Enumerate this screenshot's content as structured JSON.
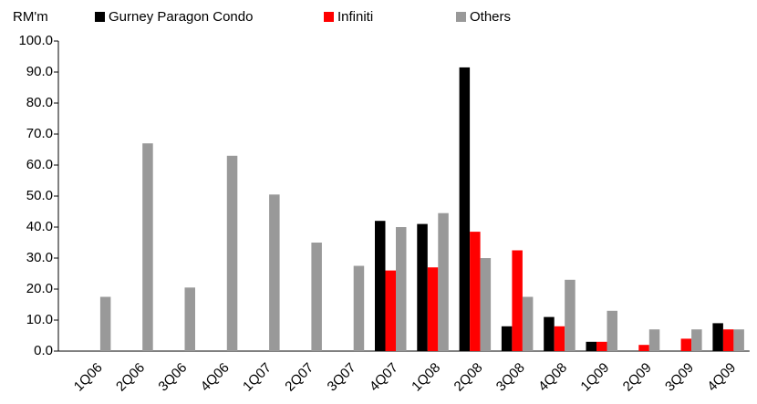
{
  "chart_data": {
    "type": "bar",
    "y_unit": "RM'm",
    "categories": [
      "1Q06",
      "2Q06",
      "3Q06",
      "4Q06",
      "1Q07",
      "2Q07",
      "3Q07",
      "4Q07",
      "1Q08",
      "2Q08",
      "3Q08",
      "4Q08",
      "1Q09",
      "2Q09",
      "3Q09",
      "4Q09"
    ],
    "series": [
      {
        "name": "Gurney Paragon Condo",
        "color": "#000000",
        "values": [
          null,
          null,
          null,
          null,
          null,
          null,
          null,
          42,
          41,
          91.5,
          8,
          11,
          3,
          null,
          null,
          9
        ]
      },
      {
        "name": "Infiniti",
        "color": "#ff0000",
        "values": [
          null,
          null,
          null,
          null,
          null,
          null,
          null,
          26,
          27,
          38.5,
          32.5,
          8,
          3,
          2,
          4,
          7
        ]
      },
      {
        "name": "Others",
        "color": "#999999",
        "values": [
          17.5,
          67,
          20.5,
          63,
          50.5,
          35,
          27.5,
          40,
          44.5,
          30,
          17.5,
          23,
          13,
          7,
          7,
          7
        ]
      }
    ],
    "ylim": [
      0,
      100
    ],
    "yticks": [
      {
        "value": 0,
        "label": "0.0"
      },
      {
        "value": 10,
        "label": "10.0"
      },
      {
        "value": 20,
        "label": "20.0"
      },
      {
        "value": 30,
        "label": "30.0"
      },
      {
        "value": 40,
        "label": "40.0"
      },
      {
        "value": 50,
        "label": "50.0"
      },
      {
        "value": 60,
        "label": "60.0"
      },
      {
        "value": 70,
        "label": "70.0"
      },
      {
        "value": 80,
        "label": "80.0"
      },
      {
        "value": 90,
        "label": "90.0"
      },
      {
        "value": 100,
        "label": "100.0"
      }
    ],
    "legend": "top"
  }
}
